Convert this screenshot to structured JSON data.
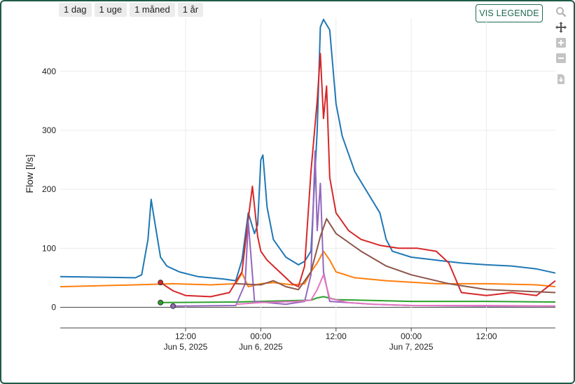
{
  "range_buttons": [
    "1 dag",
    "1 uge",
    "1 måned",
    "1 år"
  ],
  "legend_button": "VIS LEGENDE",
  "modebar_icons": [
    "zoom-icon",
    "pan-icon",
    "zoom-in-icon",
    "zoom-out-icon",
    "download-icon"
  ],
  "chart_data": {
    "type": "line",
    "title": "",
    "xlabel": "",
    "ylabel": "Flow [l/s]",
    "xlim": [
      "2025-06-04 16:00",
      "2025-06-07 23:00"
    ],
    "ylim": [
      -35,
      490
    ],
    "yticks": [
      0,
      100,
      200,
      300,
      400
    ],
    "xticks": [
      {
        "t": "2025-06-05 12:00",
        "label": "12:00",
        "sub": "Jun 5, 2025"
      },
      {
        "t": "2025-06-06 00:00",
        "label": "00:00",
        "sub": "Jun 6, 2025"
      },
      {
        "t": "2025-06-06 12:00",
        "label": "12:00",
        "sub": ""
      },
      {
        "t": "2025-06-07 00:00",
        "label": "00:00",
        "sub": "Jun 7, 2025"
      },
      {
        "t": "2025-06-07 12:00",
        "label": "12:00",
        "sub": ""
      }
    ],
    "grid": true,
    "series": [
      {
        "color": "#1f77b4",
        "points": [
          [
            "2025-06-04 16:00",
            52
          ],
          [
            "2025-06-05 04:00",
            50
          ],
          [
            "2025-06-05 05:00",
            55
          ],
          [
            "2025-06-05 06:00",
            115
          ],
          [
            "2025-06-05 06:30",
            183
          ],
          [
            "2025-06-05 07:00",
            150
          ],
          [
            "2025-06-05 08:00",
            85
          ],
          [
            "2025-06-05 09:00",
            70
          ],
          [
            "2025-06-05 11:00",
            60
          ],
          [
            "2025-06-05 14:00",
            52
          ],
          [
            "2025-06-05 18:00",
            48
          ],
          [
            "2025-06-05 20:00",
            45
          ],
          [
            "2025-06-05 21:00",
            80
          ],
          [
            "2025-06-05 22:00",
            160
          ],
          [
            "2025-06-05 23:00",
            125
          ],
          [
            "2025-06-05 23:30",
            140
          ],
          [
            "2025-06-06 00:00",
            250
          ],
          [
            "2025-06-06 00:20",
            258
          ],
          [
            "2025-06-06 01:00",
            170
          ],
          [
            "2025-06-06 02:00",
            115
          ],
          [
            "2025-06-06 03:00",
            100
          ],
          [
            "2025-06-06 04:00",
            85
          ],
          [
            "2025-06-06 06:00",
            72
          ],
          [
            "2025-06-06 07:00",
            78
          ],
          [
            "2025-06-06 08:00",
            95
          ],
          [
            "2025-06-06 09:00",
            300
          ],
          [
            "2025-06-06 09:30",
            475
          ],
          [
            "2025-06-06 10:00",
            488
          ],
          [
            "2025-06-06 11:00",
            470
          ],
          [
            "2025-06-06 12:00",
            345
          ],
          [
            "2025-06-06 13:00",
            290
          ],
          [
            "2025-06-06 15:00",
            230
          ],
          [
            "2025-06-06 17:00",
            195
          ],
          [
            "2025-06-06 19:00",
            160
          ],
          [
            "2025-06-06 20:00",
            115
          ],
          [
            "2025-06-06 21:00",
            95
          ],
          [
            "2025-06-07 00:00",
            85
          ],
          [
            "2025-06-07 04:00",
            80
          ],
          [
            "2025-06-07 08:00",
            75
          ],
          [
            "2025-06-07 12:00",
            72
          ],
          [
            "2025-06-07 16:00",
            70
          ],
          [
            "2025-06-07 20:00",
            65
          ],
          [
            "2025-06-07 23:00",
            58
          ]
        ]
      },
      {
        "color": "#ff7f0e",
        "points": [
          [
            "2025-06-04 16:00",
            35
          ],
          [
            "2025-06-05 04:00",
            38
          ],
          [
            "2025-06-05 10:00",
            40
          ],
          [
            "2025-06-05 16:00",
            38
          ],
          [
            "2025-06-05 20:00",
            40
          ],
          [
            "2025-06-05 21:00",
            58
          ],
          [
            "2025-06-05 22:00",
            35
          ],
          [
            "2025-06-06 00:00",
            40
          ],
          [
            "2025-06-06 02:00",
            42
          ],
          [
            "2025-06-06 05:00",
            38
          ],
          [
            "2025-06-06 07:00",
            40
          ],
          [
            "2025-06-06 08:00",
            60
          ],
          [
            "2025-06-06 09:00",
            75
          ],
          [
            "2025-06-06 10:00",
            95
          ],
          [
            "2025-06-06 11:00",
            80
          ],
          [
            "2025-06-06 12:00",
            60
          ],
          [
            "2025-06-06 15:00",
            50
          ],
          [
            "2025-06-06 20:00",
            45
          ],
          [
            "2025-06-07 04:00",
            40
          ],
          [
            "2025-06-07 12:00",
            40
          ],
          [
            "2025-06-07 20:00",
            38
          ],
          [
            "2025-06-07 23:00",
            35
          ]
        ]
      },
      {
        "color": "#2ca02c",
        "points": [
          [
            "2025-06-05 08:00",
            8
          ],
          [
            "2025-06-05 20:00",
            9
          ],
          [
            "2025-06-06 00:00",
            10
          ],
          [
            "2025-06-06 08:00",
            12
          ],
          [
            "2025-06-06 09:00",
            16
          ],
          [
            "2025-06-06 10:00",
            18
          ],
          [
            "2025-06-06 12:00",
            13
          ],
          [
            "2025-06-06 20:00",
            11
          ],
          [
            "2025-06-07 00:00",
            10
          ],
          [
            "2025-06-07 12:00",
            10
          ],
          [
            "2025-06-07 23:00",
            9
          ]
        ]
      },
      {
        "color": "#d62728",
        "points": [
          [
            "2025-06-05 08:00",
            42
          ],
          [
            "2025-06-05 10:00",
            28
          ],
          [
            "2025-06-05 12:00",
            20
          ],
          [
            "2025-06-05 16:00",
            18
          ],
          [
            "2025-06-05 19:00",
            25
          ],
          [
            "2025-06-05 21:00",
            60
          ],
          [
            "2025-06-05 22:00",
            150
          ],
          [
            "2025-06-05 22:40",
            205
          ],
          [
            "2025-06-05 23:30",
            120
          ],
          [
            "2025-06-06 00:00",
            95
          ],
          [
            "2025-06-06 01:00",
            80
          ],
          [
            "2025-06-06 03:00",
            60
          ],
          [
            "2025-06-06 05:00",
            40
          ],
          [
            "2025-06-06 06:00",
            35
          ],
          [
            "2025-06-06 07:00",
            70
          ],
          [
            "2025-06-06 08:00",
            230
          ],
          [
            "2025-06-06 09:00",
            350
          ],
          [
            "2025-06-06 09:30",
            430
          ],
          [
            "2025-06-06 10:00",
            320
          ],
          [
            "2025-06-06 10:30",
            375
          ],
          [
            "2025-06-06 11:00",
            220
          ],
          [
            "2025-06-06 12:00",
            160
          ],
          [
            "2025-06-06 14:00",
            130
          ],
          [
            "2025-06-06 16:00",
            115
          ],
          [
            "2025-06-06 19:00",
            105
          ],
          [
            "2025-06-06 22:00",
            100
          ],
          [
            "2025-06-07 01:00",
            100
          ],
          [
            "2025-06-07 04:00",
            95
          ],
          [
            "2025-06-07 06:00",
            75
          ],
          [
            "2025-06-07 08:00",
            25
          ],
          [
            "2025-06-07 12:00",
            20
          ],
          [
            "2025-06-07 16:00",
            25
          ],
          [
            "2025-06-07 20:00",
            20
          ],
          [
            "2025-06-07 23:00",
            45
          ]
        ]
      },
      {
        "color": "#9467bd",
        "points": [
          [
            "2025-06-05 10:00",
            2
          ],
          [
            "2025-06-05 20:00",
            3
          ],
          [
            "2025-06-05 21:30",
            40
          ],
          [
            "2025-06-05 22:00",
            145
          ],
          [
            "2025-06-05 23:00",
            10
          ],
          [
            "2025-06-06 04:00",
            5
          ],
          [
            "2025-06-06 07:00",
            10
          ],
          [
            "2025-06-06 08:00",
            55
          ],
          [
            "2025-06-06 08:40",
            265
          ],
          [
            "2025-06-06 09:00",
            130
          ],
          [
            "2025-06-06 09:30",
            210
          ],
          [
            "2025-06-06 10:00",
            60
          ],
          [
            "2025-06-06 11:00",
            10
          ],
          [
            "2025-06-06 18:00",
            5
          ],
          [
            "2025-06-07 00:00",
            3
          ],
          [
            "2025-06-07 12:00",
            2
          ],
          [
            "2025-06-07 23:00",
            2
          ]
        ]
      },
      {
        "color": "#8c564b",
        "points": [
          [
            "2025-06-05 20:00",
            40
          ],
          [
            "2025-06-06 00:00",
            38
          ],
          [
            "2025-06-06 02:00",
            45
          ],
          [
            "2025-06-06 04:00",
            35
          ],
          [
            "2025-06-06 06:00",
            30
          ],
          [
            "2025-06-06 08:00",
            60
          ],
          [
            "2025-06-06 09:30",
            120
          ],
          [
            "2025-06-06 10:30",
            150
          ],
          [
            "2025-06-06 12:00",
            125
          ],
          [
            "2025-06-06 16:00",
            95
          ],
          [
            "2025-06-06 20:00",
            70
          ],
          [
            "2025-06-07 00:00",
            55
          ],
          [
            "2025-06-07 06:00",
            40
          ],
          [
            "2025-06-07 12:00",
            30
          ],
          [
            "2025-06-07 23:00",
            25
          ]
        ]
      },
      {
        "color": "#e377c2",
        "points": [
          [
            "2025-06-05 20:00",
            5
          ],
          [
            "2025-06-06 00:00",
            8
          ],
          [
            "2025-06-06 06:00",
            10
          ],
          [
            "2025-06-06 08:00",
            12
          ],
          [
            "2025-06-06 09:00",
            30
          ],
          [
            "2025-06-06 10:00",
            55
          ],
          [
            "2025-06-06 11:00",
            15
          ],
          [
            "2025-06-06 14:00",
            8
          ],
          [
            "2025-06-06 18:00",
            5
          ],
          [
            "2025-06-07 00:00",
            3
          ],
          [
            "2025-06-07 12:00",
            3
          ],
          [
            "2025-06-07 23:00",
            2
          ]
        ]
      }
    ],
    "start_markers": [
      {
        "color": "#d62728",
        "t": "2025-06-05 08:00",
        "y": 42
      },
      {
        "color": "#2ca02c",
        "t": "2025-06-05 08:00",
        "y": 8
      },
      {
        "color": "#9467bd",
        "t": "2025-06-05 10:00",
        "y": 2
      }
    ]
  }
}
